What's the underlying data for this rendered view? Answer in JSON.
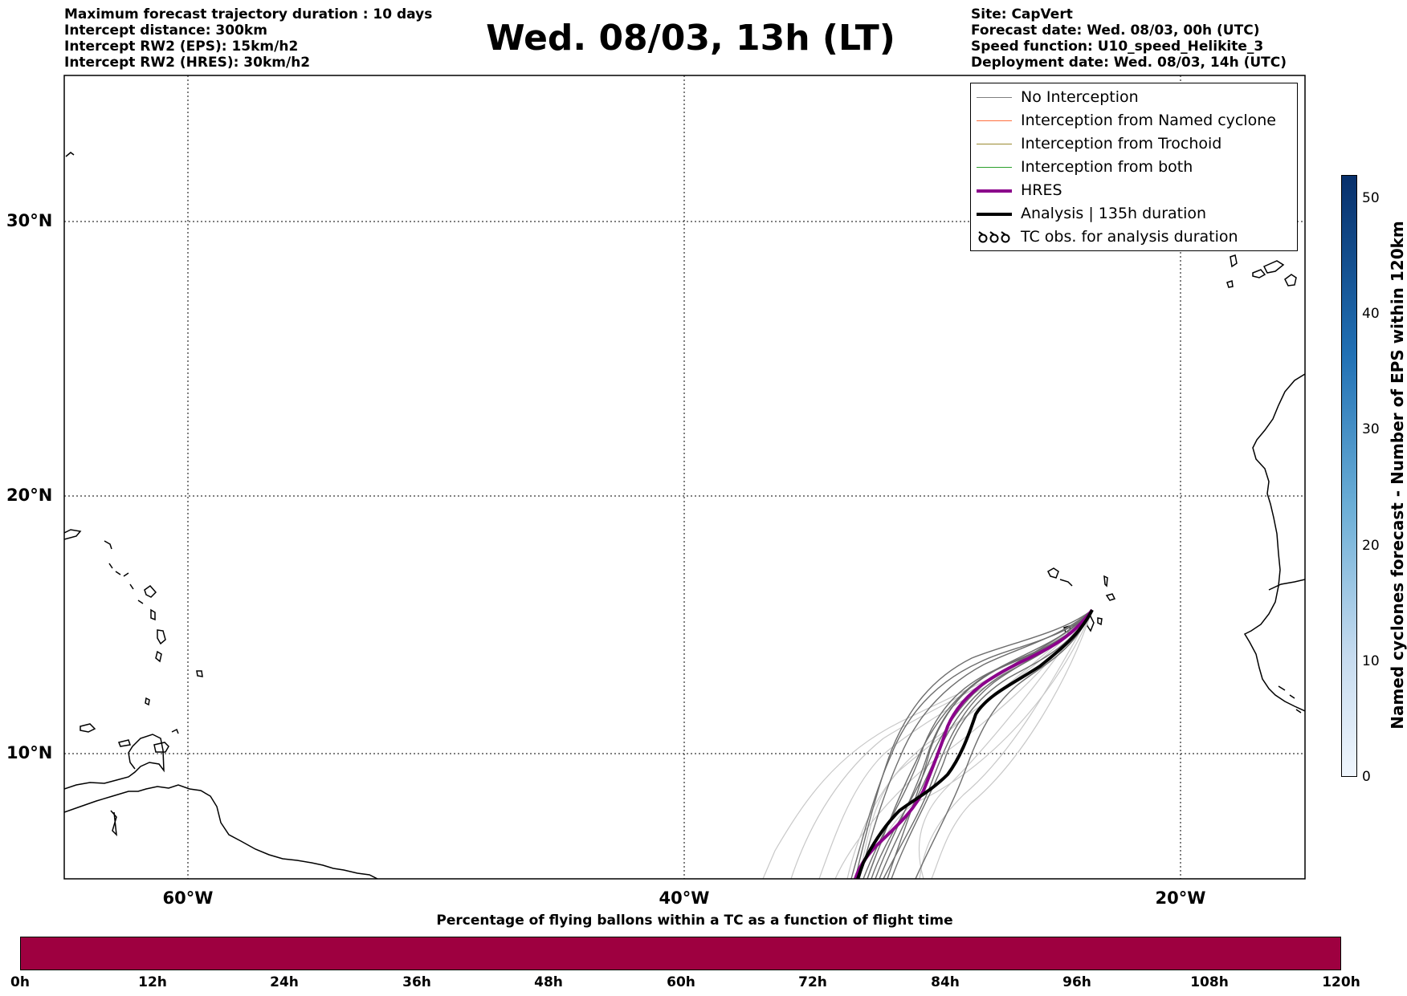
{
  "header_left": [
    "Maximum forecast trajectory duration : 10 days",
    "Intercept distance: 300km",
    "Intercept RW2 (EPS):  15km/h2",
    "Intercept RW2 (HRES): 30km/h2"
  ],
  "title": "Wed. 08/03, 13h (LT)",
  "header_right": [
    "Site: CapVert",
    "Forecast date: Wed. 08/03, 00h (UTC)",
    "Speed function: U10_speed_Helikite_3",
    "Deployment date: Wed. 08/03, 14h (UTC)"
  ],
  "map": {
    "lat_labels": [
      "30°N",
      "20°N",
      "10°N"
    ],
    "lon_labels": [
      "60°W",
      "40°W",
      "20°W"
    ],
    "grid": true,
    "colors": {
      "no_interception": "#7f7f7f",
      "named_cyclone": "#ff6f3f",
      "trochoid": "#9a8a30",
      "both": "#2ca02c",
      "hres": "#8b008b",
      "analysis": "#000000"
    }
  },
  "legend": {
    "items": [
      {
        "label": "No Interception",
        "color": "#808080",
        "style": "thin"
      },
      {
        "label": "Interception from Named cyclone",
        "color": "#ff6f3f",
        "style": "thin"
      },
      {
        "label": "Interception from Trochoid",
        "color": "#9a8a30",
        "style": "thin"
      },
      {
        "label": "Interception from both",
        "color": "#2ca02c",
        "style": "thin"
      },
      {
        "label": "HRES",
        "color": "#8b008b",
        "style": "thick"
      },
      {
        "label": "Analysis | 135h duration",
        "color": "#000000",
        "style": "thick"
      },
      {
        "label": "TC obs. for analysis duration",
        "color": "#000000",
        "style": "cyclone-symbol",
        "symbol": "ઈઈઈ"
      }
    ]
  },
  "colorbar": {
    "label": "Named cyclones forecast - Number of EPS within 120km",
    "ticks": [
      "0",
      "10",
      "20",
      "30",
      "40",
      "50"
    ],
    "max": 52
  },
  "percentage_bar": {
    "label": "Percentage of flying ballons within a TC as a function of flight time",
    "ticks": [
      "0h",
      "12h",
      "24h",
      "36h",
      "48h",
      "60h",
      "72h",
      "84h",
      "96h",
      "108h",
      "120h"
    ],
    "fill_color": "#9e0040"
  }
}
